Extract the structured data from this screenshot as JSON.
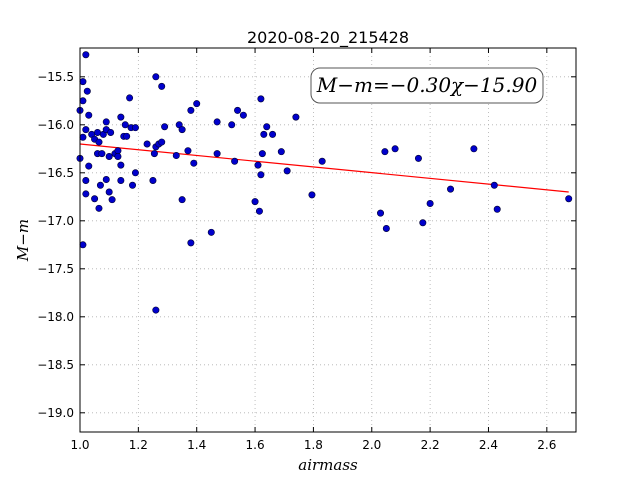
{
  "chart_data": {
    "type": "scatter",
    "title": "2020-08-20_215428",
    "xlabel": "airmass",
    "ylabel": "M−m",
    "xlim": [
      1.0,
      2.7
    ],
    "ylim": [
      -19.2,
      -15.2
    ],
    "y_inverted": true,
    "grid": true,
    "x_ticks": [
      {
        "value": 1.0,
        "label": "1.0"
      },
      {
        "value": 1.2,
        "label": "1.2"
      },
      {
        "value": 1.4,
        "label": "1.4"
      },
      {
        "value": 1.6,
        "label": "1.6"
      },
      {
        "value": 1.8,
        "label": "1.8"
      },
      {
        "value": 2.0,
        "label": "2.0"
      },
      {
        "value": 2.2,
        "label": "2.2"
      },
      {
        "value": 2.4,
        "label": "2.4"
      },
      {
        "value": 2.6,
        "label": "2.6"
      }
    ],
    "y_ticks": [
      {
        "value": -15.5,
        "label": "−15.5"
      },
      {
        "value": -16.0,
        "label": "−16.0"
      },
      {
        "value": -16.5,
        "label": "−16.5"
      },
      {
        "value": -17.0,
        "label": "−17.0"
      },
      {
        "value": -17.5,
        "label": "−17.5"
      },
      {
        "value": -18.0,
        "label": "−18.0"
      },
      {
        "value": -18.5,
        "label": "−18.5"
      },
      {
        "value": -19.0,
        "label": "−19.0"
      }
    ],
    "points_color": "#0000cc",
    "points": [
      {
        "x": 1.0,
        "y": -15.85
      },
      {
        "x": 1.01,
        "y": -15.55
      },
      {
        "x": 1.01,
        "y": -15.75
      },
      {
        "x": 1.01,
        "y": -16.13
      },
      {
        "x": 1.0,
        "y": -16.35
      },
      {
        "x": 1.01,
        "y": -17.25
      },
      {
        "x": 1.02,
        "y": -15.27
      },
      {
        "x": 1.025,
        "y": -15.65
      },
      {
        "x": 1.03,
        "y": -15.9
      },
      {
        "x": 1.02,
        "y": -16.05
      },
      {
        "x": 1.04,
        "y": -16.1
      },
      {
        "x": 1.03,
        "y": -16.43
      },
      {
        "x": 1.02,
        "y": -16.58
      },
      {
        "x": 1.02,
        "y": -16.72
      },
      {
        "x": 1.05,
        "y": -16.15
      },
      {
        "x": 1.06,
        "y": -16.08
      },
      {
        "x": 1.065,
        "y": -16.18
      },
      {
        "x": 1.06,
        "y": -16.3
      },
      {
        "x": 1.05,
        "y": -16.77
      },
      {
        "x": 1.07,
        "y": -16.63
      },
      {
        "x": 1.065,
        "y": -16.87
      },
      {
        "x": 1.08,
        "y": -16.1
      },
      {
        "x": 1.09,
        "y": -16.05
      },
      {
        "x": 1.09,
        "y": -15.97
      },
      {
        "x": 1.075,
        "y": -16.3
      },
      {
        "x": 1.1,
        "y": -16.33
      },
      {
        "x": 1.09,
        "y": -16.57
      },
      {
        "x": 1.1,
        "y": -16.7
      },
      {
        "x": 1.11,
        "y": -16.78
      },
      {
        "x": 1.105,
        "y": -16.08
      },
      {
        "x": 1.12,
        "y": -16.3
      },
      {
        "x": 1.13,
        "y": -16.27
      },
      {
        "x": 1.13,
        "y": -16.33
      },
      {
        "x": 1.14,
        "y": -15.92
      },
      {
        "x": 1.14,
        "y": -16.42
      },
      {
        "x": 1.14,
        "y": -16.58
      },
      {
        "x": 1.15,
        "y": -16.12
      },
      {
        "x": 1.16,
        "y": -16.12
      },
      {
        "x": 1.155,
        "y": -16.0
      },
      {
        "x": 1.17,
        "y": -15.72
      },
      {
        "x": 1.175,
        "y": -16.03
      },
      {
        "x": 1.19,
        "y": -16.03
      },
      {
        "x": 1.18,
        "y": -16.63
      },
      {
        "x": 1.19,
        "y": -16.5
      },
      {
        "x": 1.23,
        "y": -16.2
      },
      {
        "x": 1.25,
        "y": -16.58
      },
      {
        "x": 1.255,
        "y": -16.3
      },
      {
        "x": 1.26,
        "y": -16.23
      },
      {
        "x": 1.26,
        "y": -15.5
      },
      {
        "x": 1.27,
        "y": -16.2
      },
      {
        "x": 1.28,
        "y": -16.18
      },
      {
        "x": 1.28,
        "y": -15.6
      },
      {
        "x": 1.29,
        "y": -16.02
      },
      {
        "x": 1.26,
        "y": -17.93
      },
      {
        "x": 1.33,
        "y": -16.32
      },
      {
        "x": 1.34,
        "y": -16.0
      },
      {
        "x": 1.35,
        "y": -16.05
      },
      {
        "x": 1.35,
        "y": -16.78
      },
      {
        "x": 1.37,
        "y": -16.27
      },
      {
        "x": 1.38,
        "y": -15.85
      },
      {
        "x": 1.39,
        "y": -16.4
      },
      {
        "x": 1.4,
        "y": -15.78
      },
      {
        "x": 1.38,
        "y": -17.23
      },
      {
        "x": 1.45,
        "y": -17.12
      },
      {
        "x": 1.47,
        "y": -15.97
      },
      {
        "x": 1.47,
        "y": -16.3
      },
      {
        "x": 1.52,
        "y": -16.0
      },
      {
        "x": 1.53,
        "y": -16.38
      },
      {
        "x": 1.54,
        "y": -15.85
      },
      {
        "x": 1.56,
        "y": -15.9
      },
      {
        "x": 1.6,
        "y": -16.8
      },
      {
        "x": 1.615,
        "y": -16.9
      },
      {
        "x": 1.61,
        "y": -16.42
      },
      {
        "x": 1.62,
        "y": -15.73
      },
      {
        "x": 1.62,
        "y": -16.52
      },
      {
        "x": 1.625,
        "y": -16.3
      },
      {
        "x": 1.63,
        "y": -16.1
      },
      {
        "x": 1.64,
        "y": -16.02
      },
      {
        "x": 1.66,
        "y": -16.1
      },
      {
        "x": 1.69,
        "y": -16.28
      },
      {
        "x": 1.71,
        "y": -16.48
      },
      {
        "x": 1.74,
        "y": -15.92
      },
      {
        "x": 1.795,
        "y": -16.73
      },
      {
        "x": 1.83,
        "y": -16.38
      },
      {
        "x": 2.03,
        "y": -16.92
      },
      {
        "x": 2.045,
        "y": -16.28
      },
      {
        "x": 2.05,
        "y": -17.08
      },
      {
        "x": 2.08,
        "y": -16.25
      },
      {
        "x": 2.16,
        "y": -16.35
      },
      {
        "x": 2.175,
        "y": -17.02
      },
      {
        "x": 2.2,
        "y": -16.82
      },
      {
        "x": 2.27,
        "y": -16.67
      },
      {
        "x": 2.35,
        "y": -16.25
      },
      {
        "x": 2.42,
        "y": -16.63
      },
      {
        "x": 2.43,
        "y": -16.88
      },
      {
        "x": 2.675,
        "y": -16.77
      }
    ],
    "fit_line": {
      "color": "#ff0000",
      "x": [
        1.0,
        2.675
      ],
      "y": [
        -16.2,
        -16.7
      ]
    },
    "annotation": {
      "lhs": "M−m",
      "eq": "=",
      "rhs": "−0.30χ−15.90",
      "placement": "top-right"
    }
  }
}
